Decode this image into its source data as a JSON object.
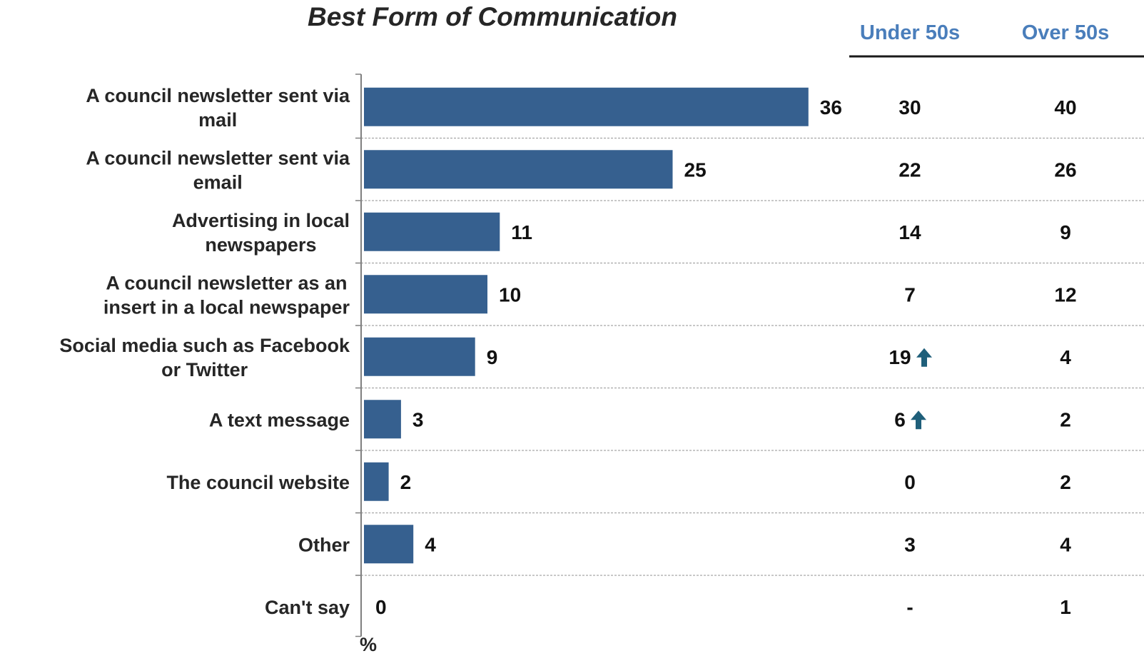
{
  "chart_data": {
    "type": "bar",
    "orientation": "horizontal",
    "title": "Best Form of Communication",
    "unit_label": "%",
    "categories": [
      "A council newsletter sent via mail",
      "A council newsletter sent via email",
      "Advertising in local newspapers",
      "A council newsletter as an insert in a local newspaper",
      "Social media such as Facebook or Twitter",
      "A text message",
      "The council website",
      "Other",
      "Can't say"
    ],
    "values": [
      36,
      25,
      11,
      10,
      9,
      3,
      2,
      4,
      0
    ],
    "value_labels": [
      "36",
      "25",
      "11",
      "10",
      "9",
      "3",
      "2",
      "4",
      "0"
    ],
    "xlim": [
      0,
      40
    ],
    "bar_color": "#36608f",
    "subgroup_table": {
      "columns": [
        "Under 50s",
        "Over 50s"
      ],
      "header_color": "#4a7ebb",
      "rows": [
        [
          "30",
          "40"
        ],
        [
          "22",
          "26"
        ],
        [
          "14",
          "9"
        ],
        [
          "7",
          "12"
        ],
        [
          "19",
          "4"
        ],
        [
          "6",
          "2"
        ],
        [
          "0",
          "2"
        ],
        [
          "3",
          "4"
        ],
        [
          "-",
          "1"
        ]
      ],
      "significantly_higher": [
        {
          "row": 4,
          "column": 0
        },
        {
          "row": 5,
          "column": 0
        }
      ],
      "arrow_icon": "arrow-up-icon",
      "arrow_color": "#1f5f7a"
    }
  }
}
